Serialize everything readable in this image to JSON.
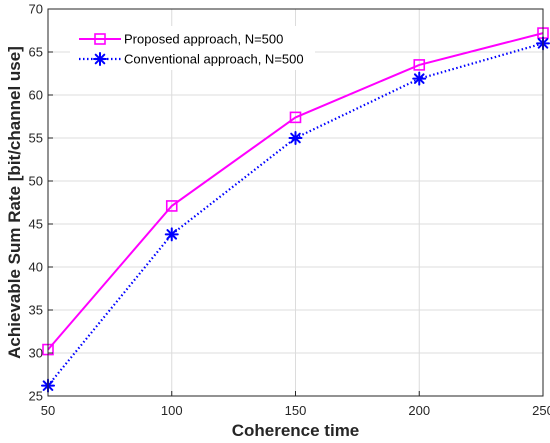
{
  "chart_data": {
    "type": "line",
    "xlabel": "Coherence time",
    "ylabel": "Achievable Sum Rate [bit/channel use]",
    "xlim": [
      50,
      250
    ],
    "ylim": [
      25,
      70
    ],
    "xticks": [
      50,
      100,
      150,
      200,
      250
    ],
    "yticks": [
      25,
      30,
      35,
      40,
      45,
      50,
      55,
      60,
      65,
      70
    ],
    "grid": true,
    "legend_position": "top-left",
    "x": [
      50,
      100,
      150,
      200,
      250
    ],
    "series": [
      {
        "name": "Proposed approach, N=500",
        "values": [
          30.4,
          47.1,
          57.4,
          63.5,
          67.2
        ],
        "color": "#ff00ff",
        "line_style": "solid",
        "marker": "square"
      },
      {
        "name": "Conventional approach, N=500",
        "values": [
          26.2,
          43.8,
          55.0,
          61.9,
          66.0
        ],
        "color": "#0000ff",
        "line_style": "dotted",
        "marker": "asterisk"
      }
    ]
  }
}
